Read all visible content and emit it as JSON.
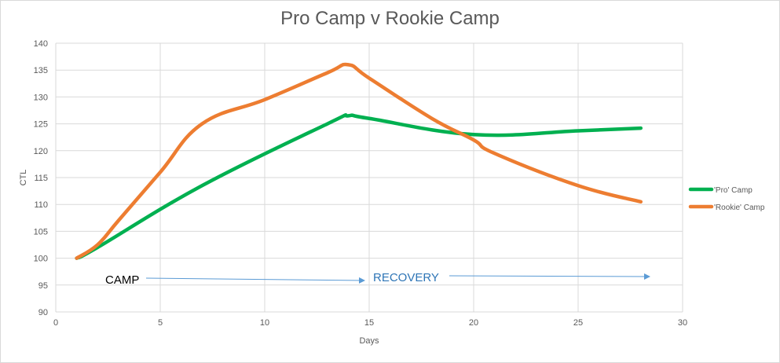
{
  "chart_data": {
    "type": "line",
    "title": "Pro Camp v Rookie Camp",
    "xlabel": "Days",
    "ylabel": "CTL",
    "xlim": [
      0,
      30
    ],
    "ylim": [
      90,
      140
    ],
    "x_ticks": [
      0,
      5,
      10,
      15,
      20,
      25,
      30
    ],
    "y_ticks": [
      90,
      95,
      100,
      105,
      110,
      115,
      120,
      125,
      130,
      135,
      140
    ],
    "grid": true,
    "legend_position": "right",
    "series": [
      {
        "name": "'Pro' Camp",
        "color": "#00b050",
        "points": [
          [
            1,
            100
          ],
          [
            2,
            102
          ],
          [
            7,
            113.5
          ],
          [
            13,
            125
          ],
          [
            14,
            126.5
          ],
          [
            15,
            126
          ],
          [
            20,
            123
          ],
          [
            25,
            123.7
          ],
          [
            28,
            124.2
          ]
        ]
      },
      {
        "name": "'Rookie' Camp",
        "color": "#ed7d31",
        "points": [
          [
            1,
            100
          ],
          [
            2,
            102.5
          ],
          [
            3,
            107
          ],
          [
            5,
            116
          ],
          [
            7,
            125
          ],
          [
            10,
            129.5
          ],
          [
            13,
            134.5
          ],
          [
            14,
            136
          ],
          [
            15,
            133.5
          ],
          [
            18,
            126
          ],
          [
            20,
            122
          ],
          [
            21,
            119.5
          ],
          [
            25,
            113.5
          ],
          [
            28,
            110.5
          ]
        ]
      }
    ],
    "annotations": [
      {
        "text": "CAMP",
        "color": "#000000"
      },
      {
        "text": "RECOVERY",
        "color": "#2e75b6"
      }
    ],
    "arrow_color": "#5b9bd5"
  }
}
